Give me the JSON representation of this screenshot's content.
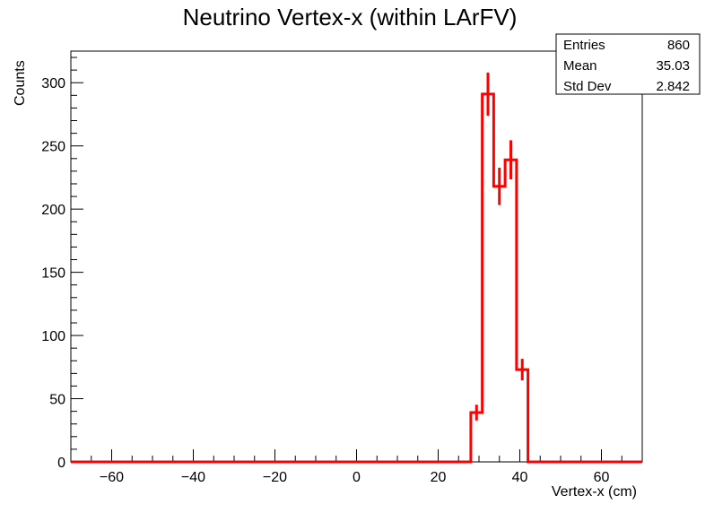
{
  "chart_data": {
    "type": "histogram",
    "title": "Neutrino Vertex-x (within LArFV)",
    "xlabel": "Vertex-x (cm)",
    "ylabel": "Counts",
    "xlim": [
      -70,
      70
    ],
    "ylim": [
      0,
      325
    ],
    "x_ticks": [
      -60,
      -40,
      -20,
      0,
      20,
      40,
      60
    ],
    "y_ticks": [
      0,
      50,
      100,
      150,
      200,
      250,
      300
    ],
    "line_color": "#ff0000",
    "bin_width": 2.8,
    "bins": [
      {
        "x_low": 28.0,
        "x_high": 30.8,
        "value": 39
      },
      {
        "x_low": 30.8,
        "x_high": 33.6,
        "value": 291
      },
      {
        "x_low": 33.6,
        "x_high": 36.4,
        "value": 218
      },
      {
        "x_low": 36.4,
        "x_high": 39.2,
        "value": 239
      },
      {
        "x_low": 39.2,
        "x_high": 42.0,
        "value": 73
      }
    ],
    "stats": {
      "rows": [
        {
          "label": "Entries",
          "value": "860"
        },
        {
          "label": "Mean",
          "value": "35.03"
        },
        {
          "label": "Std Dev",
          "value": "2.842"
        }
      ]
    }
  }
}
